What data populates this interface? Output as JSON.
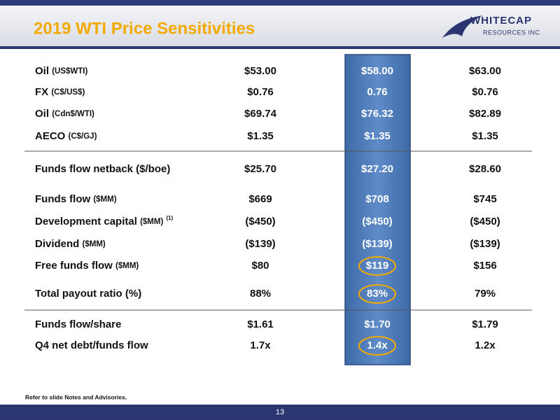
{
  "header": {
    "title": "2019 WTI Price Sensitivities",
    "logo": {
      "name": "WHITECAP",
      "tagline": "RESOURCES INC"
    }
  },
  "table": {
    "rows": [
      {
        "label": "Oil",
        "unit": "(US$WTI)",
        "values": [
          "$53.00",
          "$58.00",
          "$63.00"
        ]
      },
      {
        "label": "FX",
        "unit": "(C$/US$)",
        "values": [
          "$0.76",
          "0.76",
          "$0.76"
        ]
      },
      {
        "label": "Oil",
        "unit": "(Cdn$/WTI)",
        "values": [
          "$69.74",
          "$76.32",
          "$82.89"
        ]
      },
      {
        "label": "AECO",
        "unit": "(C$/GJ)",
        "values": [
          "$1.35",
          "$1.35",
          "$1.35"
        ]
      },
      {
        "label": "Funds flow netback ($/boe)",
        "values": [
          "$25.70",
          "$27.20",
          "$28.60"
        ]
      },
      {
        "label": "Funds flow",
        "unit": "($MM)",
        "values": [
          "$669",
          "$708",
          "$745"
        ]
      },
      {
        "label": "Development capital",
        "unit": "($MM)",
        "note": "(1)",
        "values": [
          "($450)",
          "($450)",
          "($450)"
        ]
      },
      {
        "label": "Dividend",
        "unit": "($MM)",
        "values": [
          "($139)",
          "($139)",
          "($139)"
        ]
      },
      {
        "label": "Free funds flow",
        "unit": "($MM)",
        "values": [
          "$80",
          "$119",
          "$156"
        ]
      },
      {
        "label": "Total payout ratio (%)",
        "values": [
          "88%",
          "83%",
          "79%"
        ]
      },
      {
        "label": "Funds flow/share",
        "values": [
          "$1.61",
          "$1.70",
          "$1.79"
        ]
      },
      {
        "label": "Q4 net debt/funds flow",
        "values": [
          "1.7x",
          "1.4x",
          "1.2x"
        ]
      }
    ]
  },
  "footer": {
    "note": "Refer to slide Notes and Advisories.",
    "page": "13"
  }
}
